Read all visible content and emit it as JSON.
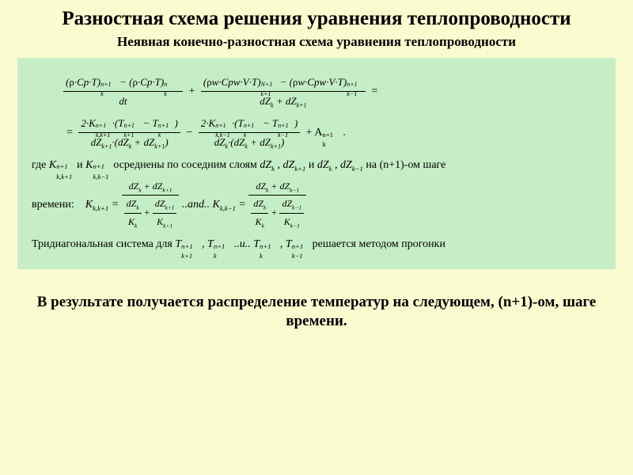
{
  "colors": {
    "page_bg": "#fbfbd0",
    "panel_bg": "#c6eec6",
    "text": "#000000"
  },
  "typography": {
    "title_size_pt": 19,
    "subtitle_size_pt": 13,
    "body_size_pt": 11,
    "conclusion_size_pt": 14,
    "family": "Times New Roman"
  },
  "title": "Разностная схема решения уравнения теплопроводности",
  "subtitle": "Неявная  конечно-разностная схема уравнения теплопроводности",
  "eq_main_line1_lhs_frac1_num": "(ρ · Cp · T)ₖⁿ⁺¹ − (ρ · Cp · T)ₖⁿ",
  "eq_main_line1_lhs_frac1_den": "dt",
  "eq_main_line1_lhs_frac2_num": "(ρw · Cpw · V · T)ₖ₊₁ᴺ⁺¹ − (ρw · Cpw · V · T)ₖ₋₁ⁿ⁺¹",
  "eq_main_line1_lhs_frac2_den": "dZₖ + dZₖ₊₁",
  "eq_main_line2_frac1_num": "2 · Kₖ,ₖ₊₁ⁿ⁺¹ · (Tₖ₊₁ⁿ⁺¹ − Tₖⁿ⁺¹)",
  "eq_main_line2_frac1_den": "dZₖ₊₁ · (dZₖ + dZₖ₊₁)",
  "eq_main_line2_frac2_num": "2 · Kₖ,ₖ₋₁ⁿ⁺¹ · (Tₖⁿ⁺¹ − Tₖ₋₁ⁿ⁺¹)",
  "eq_main_line2_frac2_den": "dZₖ · (dZₖ + dZₖ₊₁)",
  "eq_main_line2_tail": "+ Aₖⁿ⁺¹ .",
  "where_prefix": "где ",
  "where_k1": "Kₖ,ₖ₊₁ⁿ⁺¹",
  "where_and": " и ",
  "where_k2": "Kₖ,ₖ₋₁ⁿ⁺¹",
  "where_text": " осреднены по соседним слоям ",
  "where_dz1": "dZₖ , dZₖ₊₁",
  "where_dz2": "dZₖ , dZₖ₋₁",
  "where_tail": " на (n+1)-ом шаге",
  "time_label": "времени:",
  "avg1_lhs": "Kₖ,ₖ₊₁ =",
  "avg1_num": "dZₖ + dZₖ₊₁",
  "avg1_den_f1_num": "dZₖ",
  "avg1_den_f1_den": "Kₖ",
  "avg1_den_f2_num": "dZₖ₊₁",
  "avg1_den_f2_den": "Kₖ₊₁",
  "avg_sep": "..and..",
  "avg2_lhs": "Kₖ,ₖ₋₁ =",
  "avg2_num": "dZₖ + dZₖ₋₁",
  "avg2_den_f1_num": "dZₖ",
  "avg2_den_f1_den": "Kₖ",
  "avg2_den_f2_num": "dZₖ₋₁",
  "avg2_den_f2_den": "Kₖ₋₁",
  "tridiag_prefix": "Тридиагональная система для  ",
  "tridiag_vars": "Tₖ₊₁ⁿ⁺¹ , Tₖⁿ⁺¹ ..и.. Tₖⁿ⁺¹ , Tₖ₋₁ⁿ⁺¹",
  "tridiag_tail": "  решается методом прогонки",
  "conclusion": "В результате получается распределение температур на следующем, (n+1)-ом, шаге времени."
}
